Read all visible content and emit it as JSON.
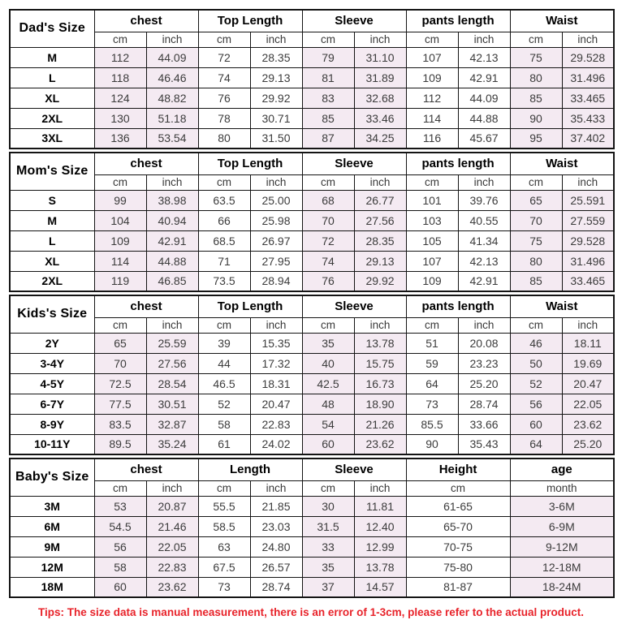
{
  "tips": "Tips: The size data is manual measurement, there is an error of 1-3cm, please refer to the actual product.",
  "colors": {
    "shaded_cell": "#f4eaf2",
    "tips_text": "#e8242b",
    "border": "#141414"
  },
  "tables": [
    {
      "id": "dads-size",
      "label": "Dad's Size",
      "groups": [
        {
          "name": "chest",
          "sub": [
            "cm",
            "inch"
          ],
          "shaded": true
        },
        {
          "name": "Top Length",
          "sub": [
            "cm",
            "inch"
          ],
          "shaded": false
        },
        {
          "name": "Sleeve",
          "sub": [
            "cm",
            "inch"
          ],
          "shaded": true
        },
        {
          "name": "pants length",
          "sub": [
            "cm",
            "inch"
          ],
          "shaded": false
        },
        {
          "name": "Waist",
          "sub": [
            "cm",
            "inch"
          ],
          "shaded": true
        }
      ],
      "rows": [
        {
          "size": "M",
          "values": [
            "112",
            "44.09",
            "72",
            "28.35",
            "79",
            "31.10",
            "107",
            "42.13",
            "75",
            "29.528"
          ]
        },
        {
          "size": "L",
          "values": [
            "118",
            "46.46",
            "74",
            "29.13",
            "81",
            "31.89",
            "109",
            "42.91",
            "80",
            "31.496"
          ]
        },
        {
          "size": "XL",
          "values": [
            "124",
            "48.82",
            "76",
            "29.92",
            "83",
            "32.68",
            "112",
            "44.09",
            "85",
            "33.465"
          ]
        },
        {
          "size": "2XL",
          "values": [
            "130",
            "51.18",
            "78",
            "30.71",
            "85",
            "33.46",
            "114",
            "44.88",
            "90",
            "35.433"
          ]
        },
        {
          "size": "3XL",
          "values": [
            "136",
            "53.54",
            "80",
            "31.50",
            "87",
            "34.25",
            "116",
            "45.67",
            "95",
            "37.402"
          ]
        }
      ]
    },
    {
      "id": "moms-size",
      "label": "Mom's Size",
      "groups": [
        {
          "name": "chest",
          "sub": [
            "cm",
            "inch"
          ],
          "shaded": true
        },
        {
          "name": "Top Length",
          "sub": [
            "cm",
            "inch"
          ],
          "shaded": false
        },
        {
          "name": "Sleeve",
          "sub": [
            "cm",
            "inch"
          ],
          "shaded": true
        },
        {
          "name": "pants length",
          "sub": [
            "cm",
            "inch"
          ],
          "shaded": false
        },
        {
          "name": "Waist",
          "sub": [
            "cm",
            "inch"
          ],
          "shaded": true
        }
      ],
      "rows": [
        {
          "size": "S",
          "values": [
            "99",
            "38.98",
            "63.5",
            "25.00",
            "68",
            "26.77",
            "101",
            "39.76",
            "65",
            "25.591"
          ]
        },
        {
          "size": "M",
          "values": [
            "104",
            "40.94",
            "66",
            "25.98",
            "70",
            "27.56",
            "103",
            "40.55",
            "70",
            "27.559"
          ]
        },
        {
          "size": "L",
          "values": [
            "109",
            "42.91",
            "68.5",
            "26.97",
            "72",
            "28.35",
            "105",
            "41.34",
            "75",
            "29.528"
          ]
        },
        {
          "size": "XL",
          "values": [
            "114",
            "44.88",
            "71",
            "27.95",
            "74",
            "29.13",
            "107",
            "42.13",
            "80",
            "31.496"
          ]
        },
        {
          "size": "2XL",
          "values": [
            "119",
            "46.85",
            "73.5",
            "28.94",
            "76",
            "29.92",
            "109",
            "42.91",
            "85",
            "33.465"
          ]
        }
      ]
    },
    {
      "id": "kids-size",
      "label": "Kids's Size",
      "groups": [
        {
          "name": "chest",
          "sub": [
            "cm",
            "inch"
          ],
          "shaded": true
        },
        {
          "name": "Top Length",
          "sub": [
            "cm",
            "inch"
          ],
          "shaded": false
        },
        {
          "name": "Sleeve",
          "sub": [
            "cm",
            "inch"
          ],
          "shaded": true
        },
        {
          "name": "pants length",
          "sub": [
            "cm",
            "inch"
          ],
          "shaded": false
        },
        {
          "name": "Waist",
          "sub": [
            "cm",
            "inch"
          ],
          "shaded": true
        }
      ],
      "rows": [
        {
          "size": "2Y",
          "values": [
            "65",
            "25.59",
            "39",
            "15.35",
            "35",
            "13.78",
            "51",
            "20.08",
            "46",
            "18.11"
          ]
        },
        {
          "size": "3-4Y",
          "values": [
            "70",
            "27.56",
            "44",
            "17.32",
            "40",
            "15.75",
            "59",
            "23.23",
            "50",
            "19.69"
          ]
        },
        {
          "size": "4-5Y",
          "values": [
            "72.5",
            "28.54",
            "46.5",
            "18.31",
            "42.5",
            "16.73",
            "64",
            "25.20",
            "52",
            "20.47"
          ]
        },
        {
          "size": "6-7Y",
          "values": [
            "77.5",
            "30.51",
            "52",
            "20.47",
            "48",
            "18.90",
            "73",
            "28.74",
            "56",
            "22.05"
          ]
        },
        {
          "size": "8-9Y",
          "values": [
            "83.5",
            "32.87",
            "58",
            "22.83",
            "54",
            "21.26",
            "85.5",
            "33.66",
            "60",
            "23.62"
          ]
        },
        {
          "size": "10-11Y",
          "values": [
            "89.5",
            "35.24",
            "61",
            "24.02",
            "60",
            "23.62",
            "90",
            "35.43",
            "64",
            "25.20"
          ]
        }
      ]
    },
    {
      "id": "babys-size",
      "label": "Baby's Size",
      "groups": [
        {
          "name": "chest",
          "sub": [
            "cm",
            "inch"
          ],
          "shaded": true
        },
        {
          "name": "Length",
          "sub": [
            "cm",
            "inch"
          ],
          "shaded": false
        },
        {
          "name": "Sleeve",
          "sub": [
            "cm",
            "inch"
          ],
          "shaded": true
        },
        {
          "name": "Height",
          "sub": [
            "cm"
          ],
          "shaded": false
        },
        {
          "name": "age",
          "sub": [
            "month"
          ],
          "shaded": true
        }
      ],
      "rows": [
        {
          "size": "3M",
          "values": [
            "53",
            "20.87",
            "55.5",
            "21.85",
            "30",
            "11.81",
            "61-65",
            "3-6M"
          ]
        },
        {
          "size": "6M",
          "values": [
            "54.5",
            "21.46",
            "58.5",
            "23.03",
            "31.5",
            "12.40",
            "65-70",
            "6-9M"
          ]
        },
        {
          "size": "9M",
          "values": [
            "56",
            "22.05",
            "63",
            "24.80",
            "33",
            "12.99",
            "70-75",
            "9-12M"
          ]
        },
        {
          "size": "12M",
          "values": [
            "58",
            "22.83",
            "67.5",
            "26.57",
            "35",
            "13.78",
            "75-80",
            "12-18M"
          ]
        },
        {
          "size": "18M",
          "values": [
            "60",
            "23.62",
            "73",
            "28.74",
            "37",
            "14.57",
            "81-87",
            "18-24M"
          ]
        }
      ]
    }
  ]
}
